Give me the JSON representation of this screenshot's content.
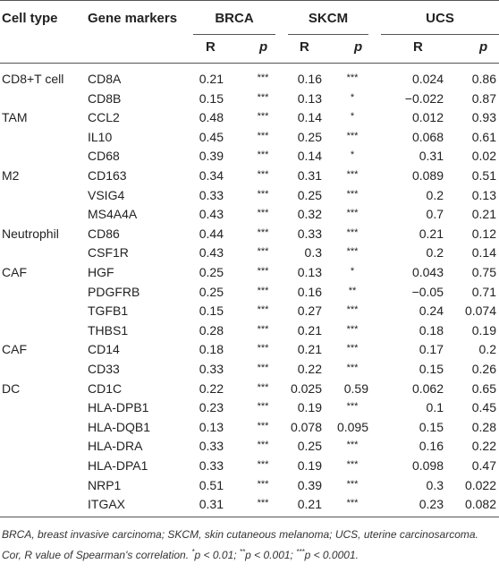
{
  "table": {
    "headers": {
      "cell_type": "Cell type",
      "gene_markers": "Gene markers",
      "groups": [
        "BRCA",
        "SKCM",
        "UCS"
      ],
      "sub": [
        "R",
        "p"
      ]
    },
    "rows": [
      {
        "cell_type": "CD8+T cell",
        "gene": "CD8A",
        "brca_r": "0.21",
        "brca_p": "***",
        "skcm_r": "0.16",
        "skcm_p": "***",
        "ucs_r": "0.024",
        "ucs_p": "0.86"
      },
      {
        "cell_type": "",
        "gene": "CD8B",
        "brca_r": "0.15",
        "brca_p": "***",
        "skcm_r": "0.13",
        "skcm_p": "*",
        "ucs_r": "−0.022",
        "ucs_p": "0.87"
      },
      {
        "cell_type": "TAM",
        "gene": "CCL2",
        "brca_r": "0.48",
        "brca_p": "***",
        "skcm_r": "0.14",
        "skcm_p": "*",
        "ucs_r": "0.012",
        "ucs_p": "0.93"
      },
      {
        "cell_type": "",
        "gene": "IL10",
        "brca_r": "0.45",
        "brca_p": "***",
        "skcm_r": "0.25",
        "skcm_p": "***",
        "ucs_r": "0.068",
        "ucs_p": "0.61"
      },
      {
        "cell_type": "",
        "gene": "CD68",
        "brca_r": "0.39",
        "brca_p": "***",
        "skcm_r": "0.14",
        "skcm_p": "*",
        "ucs_r": "0.31",
        "ucs_p": "0.02"
      },
      {
        "cell_type": "M2",
        "gene": "CD163",
        "brca_r": "0.34",
        "brca_p": "***",
        "skcm_r": "0.31",
        "skcm_p": "***",
        "ucs_r": "0.089",
        "ucs_p": "0.51"
      },
      {
        "cell_type": "",
        "gene": "VSIG4",
        "brca_r": "0.33",
        "brca_p": "***",
        "skcm_r": "0.25",
        "skcm_p": "***",
        "ucs_r": "0.2",
        "ucs_p": "0.13"
      },
      {
        "cell_type": "",
        "gene": "MS4A4A",
        "brca_r": "0.43",
        "brca_p": "***",
        "skcm_r": "0.32",
        "skcm_p": "***",
        "ucs_r": "0.7",
        "ucs_p": "0.21"
      },
      {
        "cell_type": "Neutrophil",
        "gene": "CD86",
        "brca_r": "0.44",
        "brca_p": "***",
        "skcm_r": "0.33",
        "skcm_p": "***",
        "ucs_r": "0.21",
        "ucs_p": "0.12"
      },
      {
        "cell_type": "",
        "gene": "CSF1R",
        "brca_r": "0.43",
        "brca_p": "***",
        "skcm_r": "0.3",
        "skcm_p": "***",
        "ucs_r": "0.2",
        "ucs_p": "0.14"
      },
      {
        "cell_type": "CAF",
        "gene": "HGF",
        "brca_r": "0.25",
        "brca_p": "***",
        "skcm_r": "0.13",
        "skcm_p": "*",
        "ucs_r": "0.043",
        "ucs_p": "0.75"
      },
      {
        "cell_type": "",
        "gene": "PDGFRB",
        "brca_r": "0.25",
        "brca_p": "***",
        "skcm_r": "0.16",
        "skcm_p": "**",
        "ucs_r": "−0.05",
        "ucs_p": "0.71"
      },
      {
        "cell_type": "",
        "gene": "TGFB1",
        "brca_r": "0.15",
        "brca_p": "***",
        "skcm_r": "0.27",
        "skcm_p": "***",
        "ucs_r": "0.24",
        "ucs_p": "0.074"
      },
      {
        "cell_type": "",
        "gene": "THBS1",
        "brca_r": "0.28",
        "brca_p": "***",
        "skcm_r": "0.21",
        "skcm_p": "***",
        "ucs_r": "0.18",
        "ucs_p": "0.19"
      },
      {
        "cell_type": "CAF",
        "gene": "CD14",
        "brca_r": "0.18",
        "brca_p": "***",
        "skcm_r": "0.21",
        "skcm_p": "***",
        "ucs_r": "0.17",
        "ucs_p": "0.2"
      },
      {
        "cell_type": "",
        "gene": "CD33",
        "brca_r": "0.33",
        "brca_p": "***",
        "skcm_r": "0.22",
        "skcm_p": "***",
        "ucs_r": "0.15",
        "ucs_p": "0.26"
      },
      {
        "cell_type": "DC",
        "gene": "CD1C",
        "brca_r": "0.22",
        "brca_p": "***",
        "skcm_r": "0.025",
        "skcm_p": "0.59",
        "ucs_r": "0.062",
        "ucs_p": "0.65"
      },
      {
        "cell_type": "",
        "gene": "HLA-DPB1",
        "brca_r": "0.23",
        "brca_p": "***",
        "skcm_r": "0.19",
        "skcm_p": "***",
        "ucs_r": "0.1",
        "ucs_p": "0.45"
      },
      {
        "cell_type": "",
        "gene": "HLA-DQB1",
        "brca_r": "0.13",
        "brca_p": "***",
        "skcm_r": "0.078",
        "skcm_p": "0.095",
        "ucs_r": "0.15",
        "ucs_p": "0.28"
      },
      {
        "cell_type": "",
        "gene": "HLA-DRA",
        "brca_r": "0.33",
        "brca_p": "***",
        "skcm_r": "0.25",
        "skcm_p": "***",
        "ucs_r": "0.16",
        "ucs_p": "0.22"
      },
      {
        "cell_type": "",
        "gene": "HLA-DPA1",
        "brca_r": "0.33",
        "brca_p": "***",
        "skcm_r": "0.19",
        "skcm_p": "***",
        "ucs_r": "0.098",
        "ucs_p": "0.47"
      },
      {
        "cell_type": "",
        "gene": "NRP1",
        "brca_r": "0.51",
        "brca_p": "***",
        "skcm_r": "0.39",
        "skcm_p": "***",
        "ucs_r": "0.3",
        "ucs_p": "0.022"
      },
      {
        "cell_type": "",
        "gene": "ITGAX",
        "brca_r": "0.31",
        "brca_p": "***",
        "skcm_r": "0.21",
        "skcm_p": "***",
        "ucs_r": "0.23",
        "ucs_p": "0.082"
      }
    ]
  },
  "note": {
    "definitions": "BRCA, breast invasive carcinoma; SKCM, skin cutaneous melanoma; UCS, uterine carcinosarcoma. Cor, R value of Spearman's correlation.",
    "sig1_mark": "*",
    "sig1_text": "p < 0.01;",
    "sig2_mark": "**",
    "sig2_text": "p < 0.001;",
    "sig3_mark": "***",
    "sig3_text": "p < 0.0001."
  }
}
